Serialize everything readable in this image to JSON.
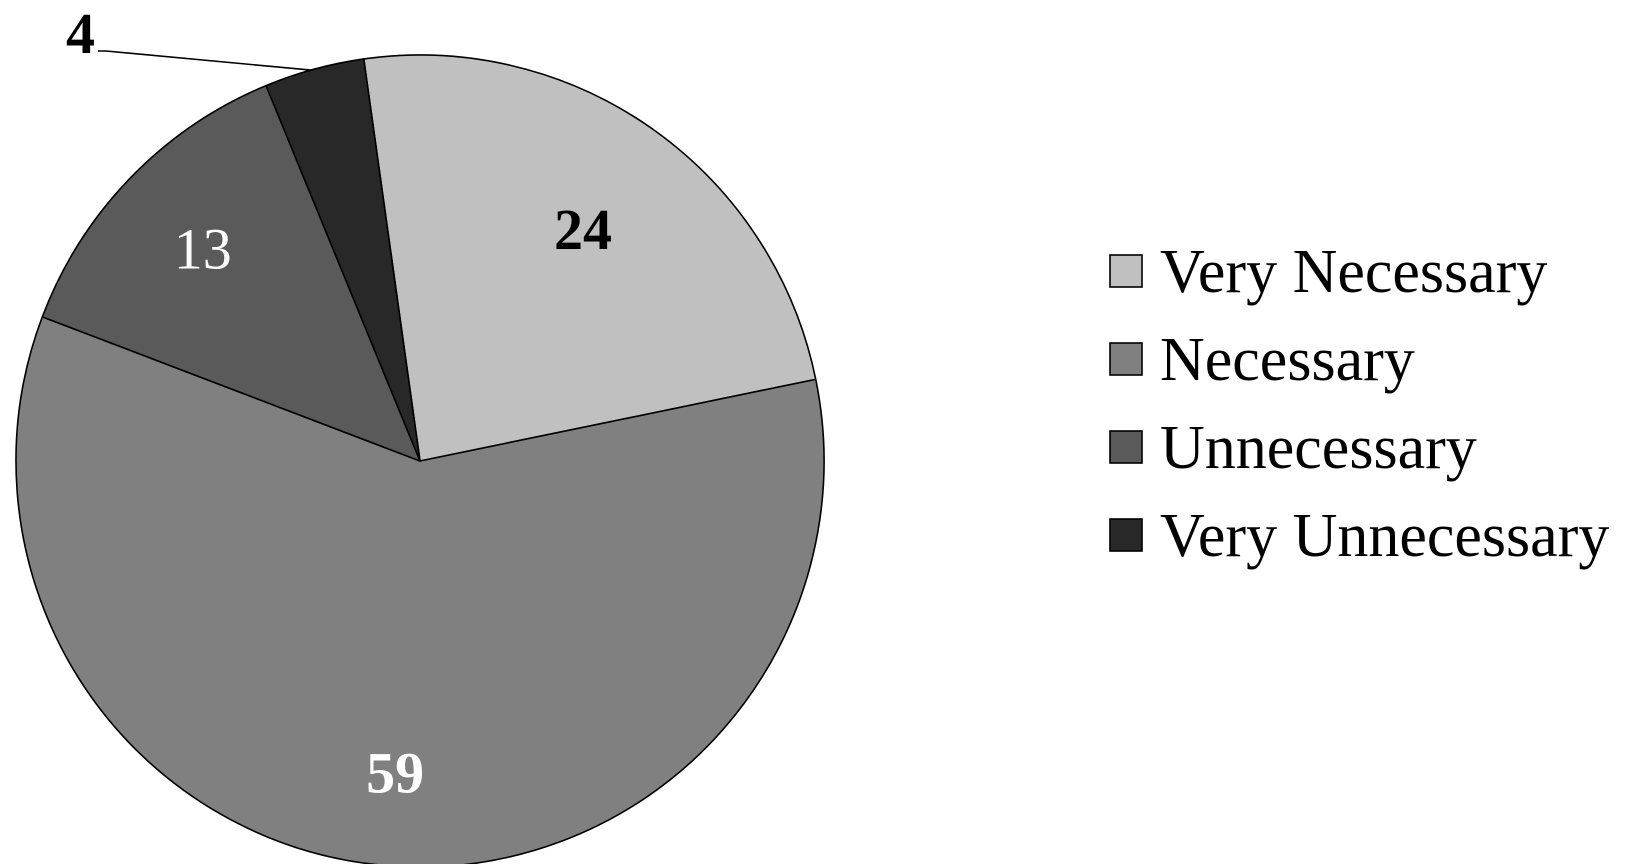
{
  "chart_data": {
    "type": "pie",
    "title": "",
    "start_angle_deg": -8,
    "direction": "clockwise",
    "legend_position": "right",
    "slices": [
      {
        "label": "Very Necessary",
        "value": 24,
        "color": "#c0c0c0",
        "label_color": "#000000",
        "label_bold": true
      },
      {
        "label": "Necessary",
        "value": 59,
        "color": "#808080",
        "label_color": "#ffffff",
        "label_bold": true
      },
      {
        "label": "Unnecessary",
        "value": 13,
        "color": "#5a5a5a",
        "label_color": "#ffffff",
        "label_bold": false
      },
      {
        "label": "Very Unnecessary",
        "value": 4,
        "color": "#282828",
        "label_color": "#000000",
        "label_bold": true
      }
    ]
  }
}
